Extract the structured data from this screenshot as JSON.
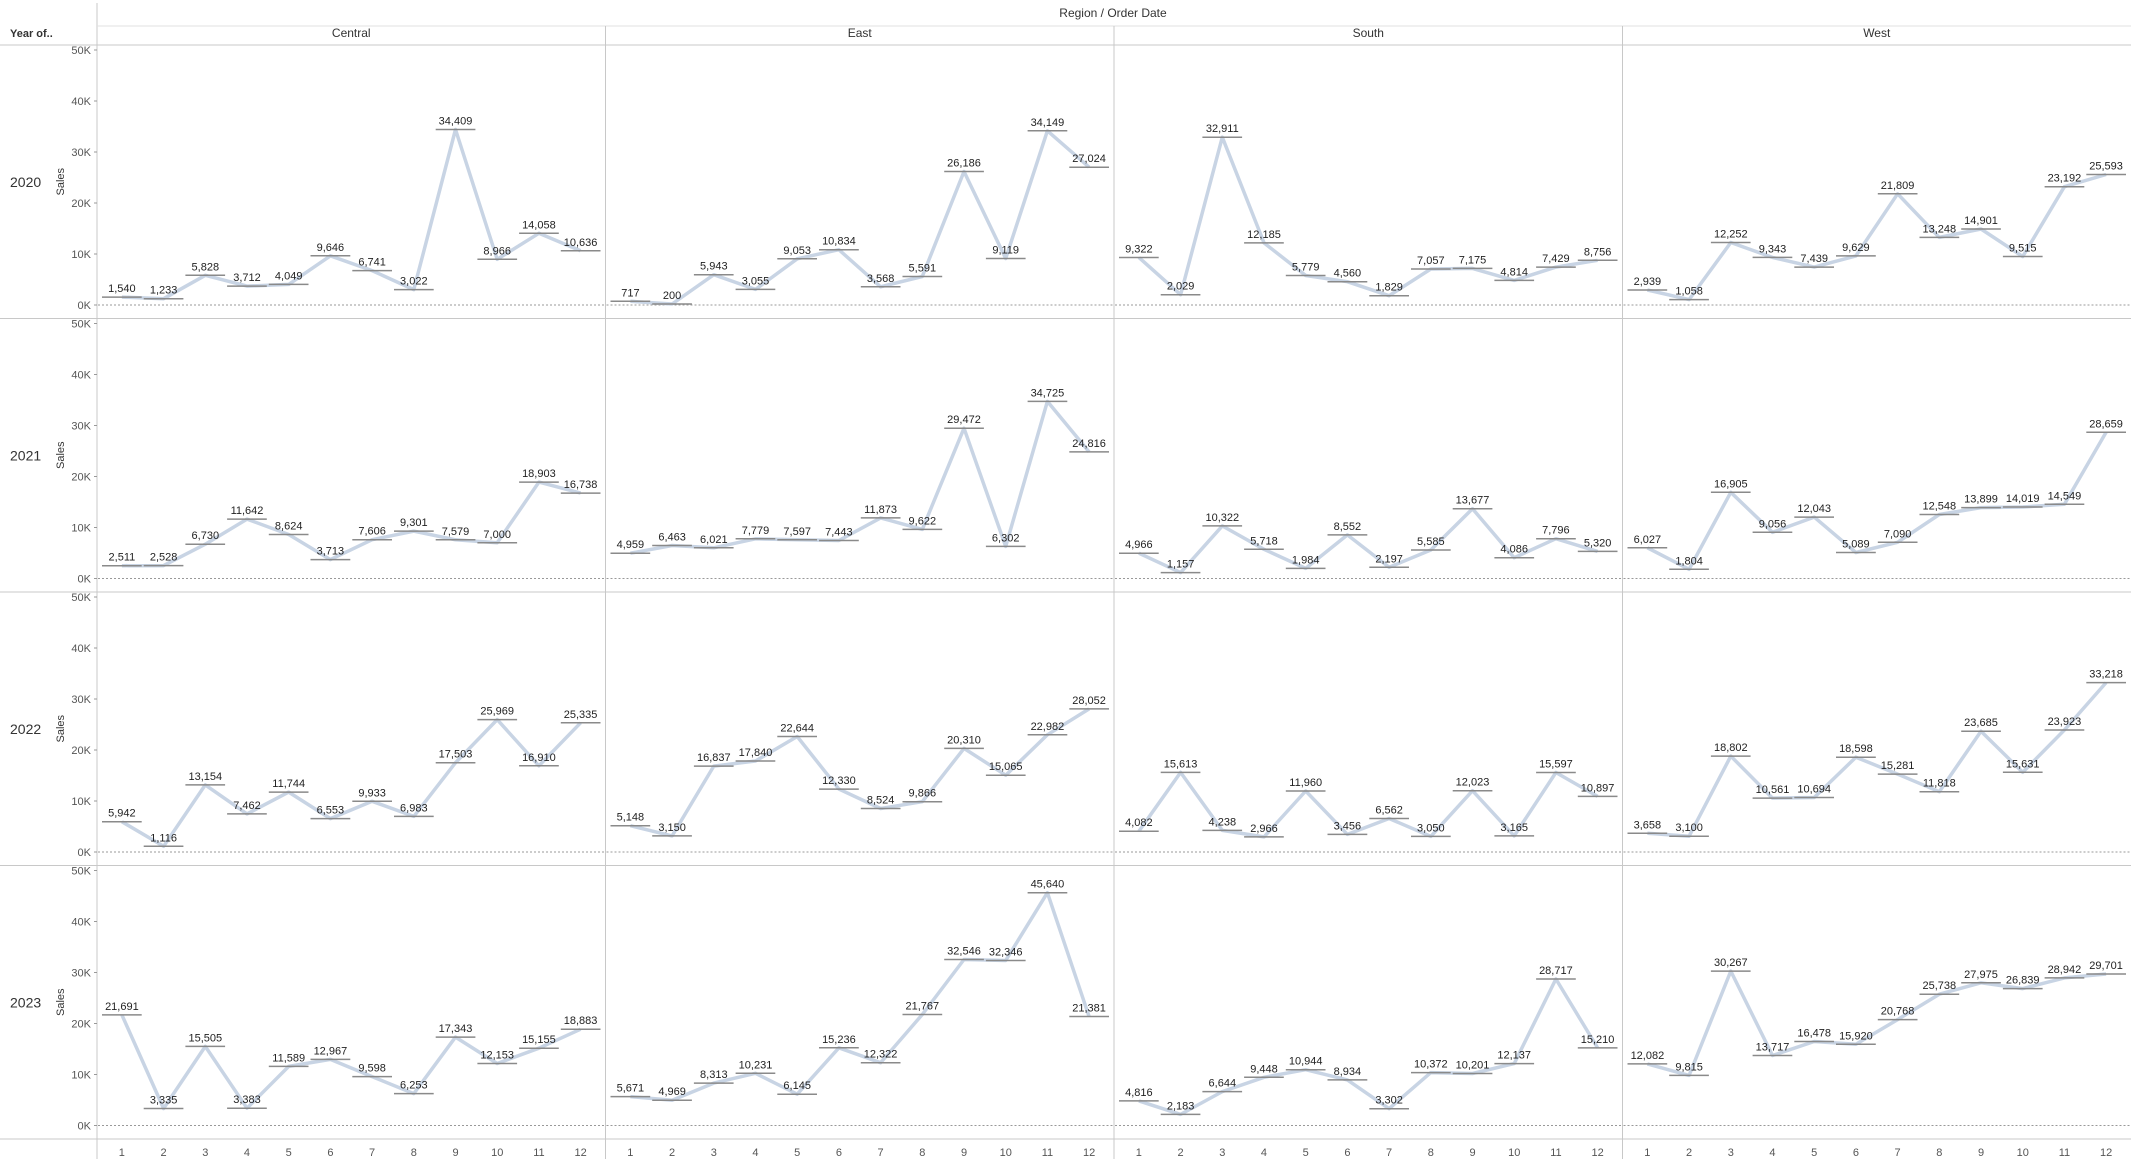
{
  "header": {
    "title": "Region  /  Order Date",
    "row_header": "Year of.."
  },
  "colors": {
    "line": "#c8d4e4",
    "step": "#8a8a8a",
    "grid": "#bfbfbf",
    "border": "#c8c8c8",
    "zero": "#999999"
  },
  "chart_data": {
    "type": "line",
    "columns": [
      "Central",
      "East",
      "South",
      "West"
    ],
    "rows": [
      "2020",
      "2021",
      "2022",
      "2023"
    ],
    "x": [
      1,
      2,
      3,
      4,
      5,
      6,
      7,
      8,
      9,
      10,
      11,
      12
    ],
    "ylabel": "Sales",
    "ylim": [
      0,
      50000
    ],
    "yticks": [
      "0K",
      "10K",
      "20K",
      "30K",
      "40K",
      "50K"
    ],
    "values": {
      "2020": {
        "Central": [
          1540,
          1233,
          5828,
          3712,
          4049,
          9646,
          6741,
          3022,
          34409,
          8966,
          14058,
          10636
        ],
        "East": [
          717,
          200,
          5943,
          3055,
          9053,
          10834,
          3568,
          5591,
          26186,
          9119,
          34149,
          27024
        ],
        "South": [
          9322,
          2029,
          32911,
          12185,
          5779,
          4560,
          1829,
          7057,
          7175,
          4814,
          7429,
          8756
        ],
        "West": [
          2939,
          1058,
          12252,
          9343,
          7439,
          9629,
          21809,
          13248,
          14901,
          9515,
          23192,
          25593
        ]
      },
      "2021": {
        "Central": [
          2511,
          2528,
          6730,
          11642,
          8624,
          3713,
          7606,
          9301,
          7579,
          7000,
          18903,
          16738
        ],
        "East": [
          4959,
          6463,
          6021,
          7779,
          7597,
          7443,
          11873,
          9622,
          29472,
          6302,
          34725,
          24816
        ],
        "South": [
          4966,
          1157,
          10322,
          5718,
          1984,
          8552,
          2197,
          5585,
          13677,
          4086,
          7796,
          5320
        ],
        "West": [
          6027,
          1804,
          16905,
          9056,
          12043,
          5089,
          7090,
          12548,
          13899,
          14019,
          14549,
          28659
        ]
      },
      "2022": {
        "Central": [
          5942,
          1116,
          13154,
          7462,
          11744,
          6553,
          9933,
          6983,
          17503,
          25969,
          16910,
          25335
        ],
        "East": [
          5148,
          3150,
          16837,
          17840,
          22644,
          12330,
          8524,
          9866,
          20310,
          15065,
          22982,
          28052
        ],
        "South": [
          4082,
          15613,
          4238,
          2966,
          11960,
          3456,
          6562,
          3050,
          12023,
          3165,
          15597,
          10897
        ],
        "West": [
          3658,
          3100,
          18802,
          10561,
          10694,
          18598,
          15281,
          11818,
          23685,
          15631,
          23923,
          33218
        ]
      },
      "2023": {
        "Central": [
          21691,
          3335,
          15505,
          3383,
          11589,
          12967,
          9598,
          6253,
          17343,
          12153,
          15155,
          18883
        ],
        "East": [
          5671,
          4969,
          8313,
          10231,
          6145,
          15236,
          12322,
          21767,
          32546,
          32346,
          45640,
          21381
        ],
        "South": [
          4816,
          2183,
          6644,
          9448,
          10944,
          8934,
          3302,
          10372,
          10201,
          12137,
          28717,
          15210
        ],
        "West": [
          12082,
          9815,
          30267,
          13717,
          16478,
          15920,
          20768,
          25738,
          27975,
          26839,
          28942,
          29701
        ]
      }
    }
  }
}
